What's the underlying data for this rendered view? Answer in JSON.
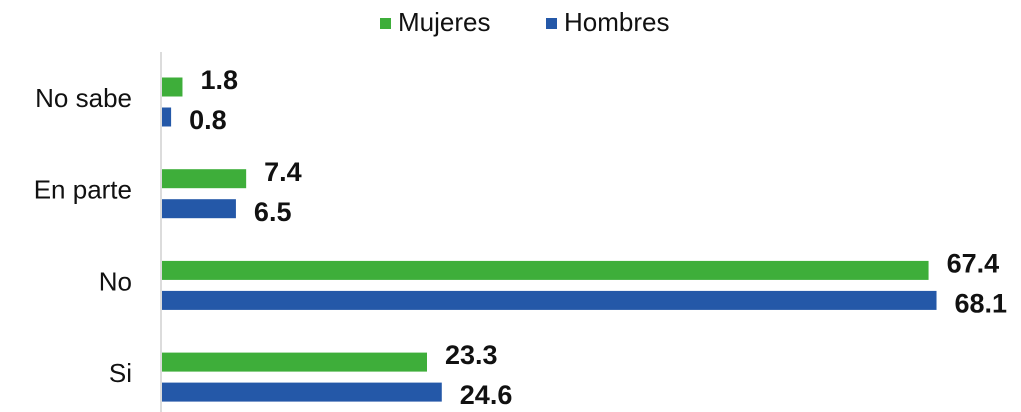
{
  "chart_data": {
    "type": "hbar",
    "categories": [
      "No sabe",
      "En parte",
      "No",
      "Si"
    ],
    "series": [
      {
        "name": "Mujeres",
        "color": "#3eae3a",
        "values": [
          1.8,
          7.4,
          67.4,
          23.3
        ]
      },
      {
        "name": "Hombres",
        "color": "#2458a8",
        "values": [
          0.8,
          6.5,
          68.1,
          24.6
        ]
      }
    ],
    "xlim": [
      0,
      75
    ],
    "legend": "top"
  }
}
